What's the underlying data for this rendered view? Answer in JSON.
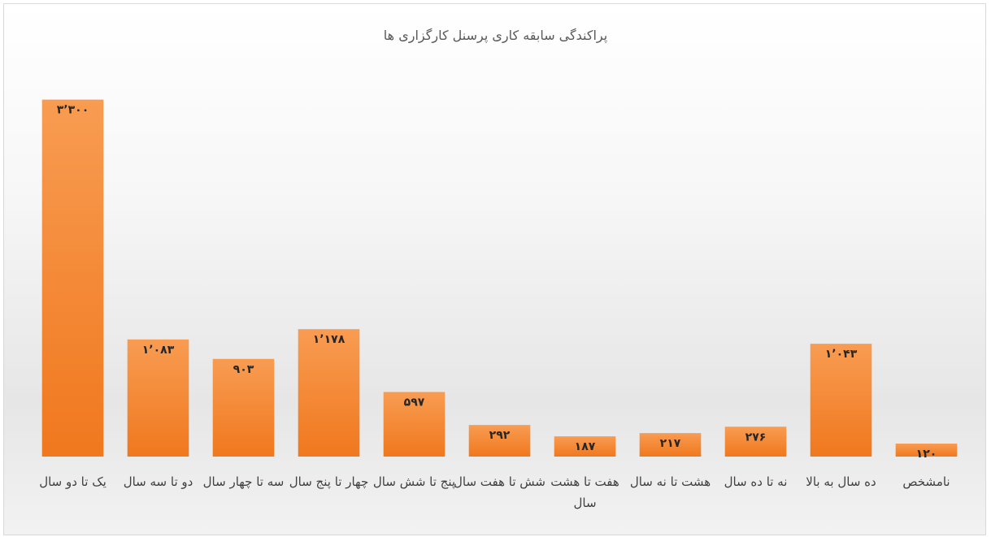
{
  "chart_data": {
    "type": "bar",
    "title": "پراکندگی سابقه کاری پرسنل کارگزاری ها",
    "categories": [
      "یک تا دو سال",
      "دو تا سه سال",
      "سه تا چهار سال",
      "چهار تا پنج سال",
      "پنج تا شش سال",
      "شش تا هفت سال",
      "هفت تا هشت سال",
      "هشت تا نه سال",
      "نه تا ده سال",
      "ده سال به بالا",
      "نامشخص"
    ],
    "values": [
      3300,
      1083,
      903,
      1178,
      597,
      292,
      187,
      217,
      276,
      1043,
      120
    ],
    "value_labels": [
      "۳٬۳۰۰",
      "۱٬۰۸۳",
      "۹۰۳",
      "۱٬۱۷۸",
      "۵۹۷",
      "۲۹۲",
      "۱۸۷",
      "۲۱۷",
      "۲۷۶",
      "۱٬۰۴۳",
      "۱۲۰"
    ],
    "color": "#f58a33",
    "ylim": [
      0,
      3500
    ]
  }
}
